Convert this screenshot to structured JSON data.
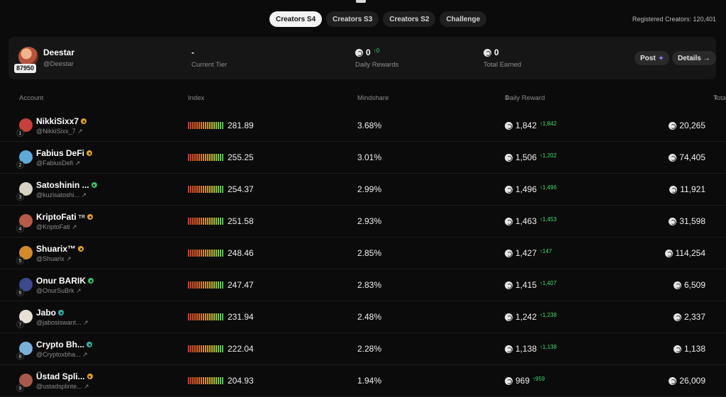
{
  "tabs": [
    "Creators S4",
    "Creators S3",
    "Creators S2",
    "Challenge"
  ],
  "active_tab": "Creators S4",
  "registered_label": "Registered Creators: 120,401",
  "user": {
    "name": "Deestar",
    "handle": "@Deestar",
    "score": "87950",
    "tier_value": "-",
    "tier_label": "Current Tier",
    "daily_value": "0",
    "daily_delta": "↑0",
    "daily_label": "Daily Rewards",
    "total_value": "0",
    "total_label": "Total Earned",
    "post_label": "Post",
    "details_label": "Details →"
  },
  "columns": {
    "account": "Account",
    "index": "Index",
    "mindshare": "Mindshare",
    "daily": "Daily Reward",
    "total": "Total Reward"
  },
  "rows": [
    {
      "rank": "1",
      "name": "NikkiSixx7",
      "tag": "",
      "badge": "gold",
      "handle": "@NikkiSixx_7 ↗",
      "index": "281.89",
      "mindshare": "3.68%",
      "daily": "1,842",
      "delta": "↑1,842",
      "total": "20,265",
      "avatar": "#c8403a"
    },
    {
      "rank": "2",
      "name": "Fabius DeFi",
      "tag": "",
      "badge": "gold",
      "handle": "@FabiusDefi ↗",
      "index": "255.25",
      "mindshare": "3.01%",
      "daily": "1,506",
      "delta": "↑1,202",
      "total": "74,405",
      "avatar": "#5fa9d6"
    },
    {
      "rank": "3",
      "name": "Satoshinin ...",
      "tag": "",
      "badge": "green",
      "handle": "@kuzisatoshi... ↗",
      "index": "254.37",
      "mindshare": "2.99%",
      "daily": "1,496",
      "delta": "↑1,496",
      "total": "11,921",
      "avatar": "#d9d2c4"
    },
    {
      "rank": "4",
      "name": "KriptoFati",
      "tag": "TR",
      "badge": "gold",
      "handle": "@KriptoFati ↗",
      "index": "251.58",
      "mindshare": "2.93%",
      "daily": "1,463",
      "delta": "↑1,453",
      "total": "31,598",
      "avatar": "#b65a4a"
    },
    {
      "rank": "5",
      "name": "Shuarix™",
      "tag": "",
      "badge": "gold",
      "handle": "@Shuarix ↗",
      "index": "248.46",
      "mindshare": "2.85%",
      "daily": "1,427",
      "delta": "↑147",
      "total": "114,254",
      "avatar": "#d48a2a"
    },
    {
      "rank": "6",
      "name": "Onur BARIK",
      "tag": "",
      "badge": "green",
      "handle": "@OnurSuBrk ↗",
      "index": "247.47",
      "mindshare": "2.83%",
      "daily": "1,415",
      "delta": "↑1,407",
      "total": "6,509",
      "avatar": "#3a4a8a"
    },
    {
      "rank": "7",
      "name": "Jabo",
      "tag": "",
      "badge": "teal",
      "handle": "@jabosiswant... ↗",
      "index": "231.94",
      "mindshare": "2.48%",
      "daily": "1,242",
      "delta": "↑1,238",
      "total": "2,337",
      "avatar": "#e6e0d6"
    },
    {
      "rank": "8",
      "name": "Crypto Bh...",
      "tag": "",
      "badge": "teal",
      "handle": "@Cryptoxbha... ↗",
      "index": "222.04",
      "mindshare": "2.28%",
      "daily": "1,138",
      "delta": "↑1,138",
      "total": "1,138",
      "avatar": "#7ab0d8"
    },
    {
      "rank": "9",
      "name": "Üstad Spli...",
      "tag": "",
      "badge": "gold",
      "handle": "@ustadsplinte... ↗",
      "index": "204.93",
      "mindshare": "1.94%",
      "daily": "969",
      "delta": "↑959",
      "total": "26,009",
      "avatar": "#a85a4a"
    }
  ]
}
